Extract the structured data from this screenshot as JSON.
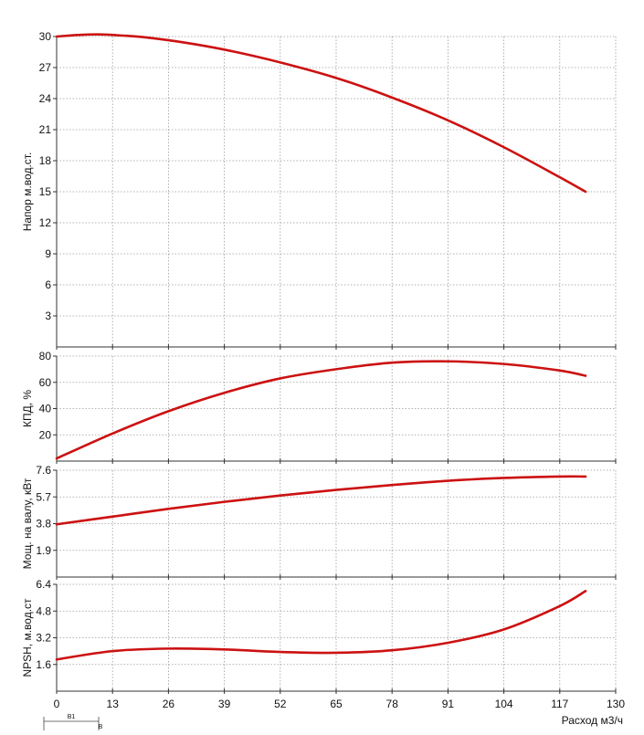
{
  "chart_data": [
    {
      "type": "line",
      "ylabel": "Напор м.вод.ст.",
      "ylim": [
        0,
        30
      ],
      "yticks": [
        3,
        6,
        9,
        12,
        15,
        18,
        21,
        24,
        27,
        30
      ],
      "grid": true,
      "series": [
        {
          "color": "#cc1111",
          "x": [
            0,
            5,
            10,
            15,
            20,
            30,
            40,
            52,
            65,
            78,
            91,
            104,
            117,
            123
          ],
          "y": [
            30.0,
            30.15,
            30.2,
            30.1,
            29.95,
            29.4,
            28.65,
            27.5,
            26.0,
            24.1,
            21.9,
            19.3,
            16.4,
            15.0
          ]
        }
      ]
    },
    {
      "type": "line",
      "ylabel": "КПД, %",
      "ylim": [
        0,
        80
      ],
      "yticks": [
        20,
        40,
        60,
        80
      ],
      "grid": true,
      "series": [
        {
          "color": "#cc1111",
          "x": [
            0,
            13,
            26,
            39,
            52,
            65,
            78,
            91,
            104,
            117,
            123
          ],
          "y": [
            2,
            21,
            38,
            52,
            63,
            70,
            75,
            76,
            74,
            69,
            65
          ]
        }
      ]
    },
    {
      "type": "line",
      "ylabel": "Мощ. на валу, кВт",
      "ylim": [
        0,
        7.6
      ],
      "yticks": [
        1.9,
        3.8,
        5.7,
        7.6
      ],
      "grid": true,
      "series": [
        {
          "color": "#cc1111",
          "x": [
            0,
            13,
            26,
            39,
            52,
            65,
            78,
            91,
            104,
            117,
            123
          ],
          "y": [
            3.75,
            4.3,
            4.85,
            5.35,
            5.8,
            6.2,
            6.55,
            6.85,
            7.05,
            7.15,
            7.15
          ]
        }
      ]
    },
    {
      "type": "line",
      "ylabel": "NPSH, м.вод.ст",
      "xlabel": "Расход м3/ч",
      "xlim": [
        0,
        130
      ],
      "xticks": [
        0,
        13,
        26,
        39,
        52,
        65,
        78,
        91,
        104,
        117,
        130
      ],
      "ylim": [
        0,
        6.4
      ],
      "yticks": [
        1.6,
        3.2,
        4.8,
        6.4
      ],
      "grid": true,
      "series": [
        {
          "color": "#cc1111",
          "x": [
            0,
            13,
            26,
            39,
            52,
            65,
            78,
            91,
            104,
            117,
            123
          ],
          "y": [
            1.9,
            2.4,
            2.55,
            2.5,
            2.35,
            2.3,
            2.45,
            2.9,
            3.7,
            5.1,
            6.0
          ]
        }
      ]
    }
  ],
  "footer_labels": {
    "b1": "B1",
    "b": "B"
  }
}
